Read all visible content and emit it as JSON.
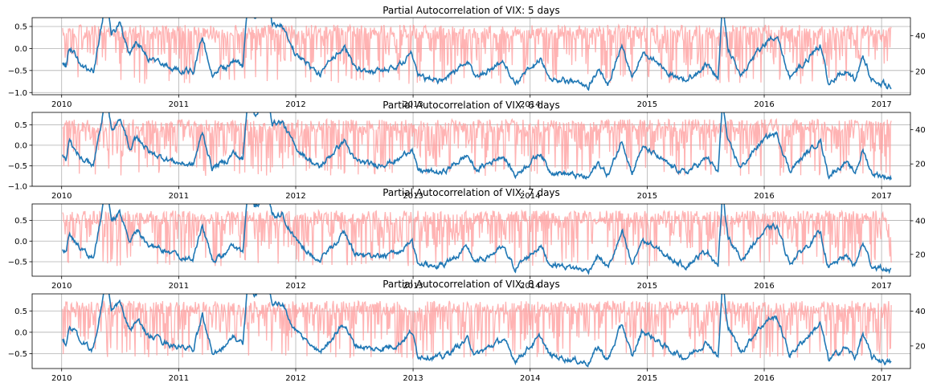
{
  "chart_data": [
    {
      "type": "line",
      "title": "Partial Autocorrelation of VIX: 5 days",
      "x_ticks": [
        "2010",
        "2011",
        "2012",
        "2013",
        "2014",
        "2015",
        "2016",
        "2017"
      ],
      "xlim": [
        "2009-10-01",
        "2017-04-01"
      ],
      "left_axis": {
        "ylim": [
          -1.05,
          0.7
        ],
        "ticks": [
          0.5,
          0.0,
          -0.5,
          -1.0
        ],
        "tick_labels": [
          "0.5",
          "0.0",
          "−0.5",
          "−1.0"
        ]
      },
      "right_axis": {
        "ylim": [
          7,
          50
        ],
        "ticks": [
          40,
          20
        ],
        "tick_labels": [
          "40",
          "20"
        ]
      },
      "grid": true,
      "series": [
        {
          "axis": "right",
          "color": "#ff9999",
          "alpha": 0.75,
          "amp": 0.54,
          "kind": "pacf",
          "seed": 5
        },
        {
          "axis": "left",
          "color": "#1f77b4",
          "base": -0.85,
          "scale": 0.062,
          "kind": "vix"
        }
      ]
    },
    {
      "type": "line",
      "title": "Partial Autocorrelation of VIX: 6 days",
      "x_ticks": [
        "2010",
        "2011",
        "2012",
        "2013",
        "2014",
        "2015",
        "2016",
        "2017"
      ],
      "xlim": [
        "2009-10-01",
        "2017-04-01"
      ],
      "left_axis": {
        "ylim": [
          -1.0,
          0.8
        ],
        "ticks": [
          0.5,
          0.0,
          -0.5,
          -1.0
        ],
        "tick_labels": [
          "0.5",
          "0.0",
          "−0.5",
          "−1.0"
        ]
      },
      "right_axis": {
        "ylim": [
          7,
          50
        ],
        "ticks": [
          40,
          20
        ],
        "tick_labels": [
          "40",
          "20"
        ]
      },
      "grid": true,
      "series": [
        {
          "axis": "right",
          "color": "#ff9999",
          "alpha": 0.75,
          "amp": 0.54,
          "kind": "pacf",
          "seed": 6
        },
        {
          "axis": "left",
          "color": "#1f77b4",
          "base": -0.8,
          "scale": 0.062,
          "kind": "vix"
        }
      ]
    },
    {
      "type": "line",
      "title": "Partial Autocorrelation of VIX: 7 days",
      "x_ticks": [
        "2010",
        "2011",
        "2012",
        "2013",
        "2014",
        "2015",
        "2016",
        "2017"
      ],
      "xlim": [
        "2009-10-01",
        "2017-04-01"
      ],
      "left_axis": {
        "ylim": [
          -0.85,
          0.9
        ],
        "ticks": [
          0.5,
          0.0,
          -0.5
        ],
        "tick_labels": [
          "0.5",
          "0.0",
          "−0.5"
        ]
      },
      "right_axis": {
        "ylim": [
          7,
          50
        ],
        "ticks": [
          40,
          20
        ],
        "tick_labels": [
          "40",
          "20"
        ]
      },
      "grid": true,
      "series": [
        {
          "axis": "right",
          "color": "#ff9999",
          "alpha": 0.75,
          "amp": 0.54,
          "kind": "pacf",
          "seed": 7
        },
        {
          "axis": "left",
          "color": "#1f77b4",
          "base": -0.72,
          "scale": 0.062,
          "kind": "vix"
        }
      ]
    },
    {
      "type": "line",
      "title": "Partial Autocorrelation of VIX: 8 days",
      "x_ticks": [
        "2010",
        "2011",
        "2012",
        "2013",
        "2014",
        "2015",
        "2016",
        "2017"
      ],
      "xlim": [
        "2009-10-01",
        "2017-04-01"
      ],
      "left_axis": {
        "ylim": [
          -0.85,
          0.9
        ],
        "ticks": [
          0.5,
          0.0,
          -0.5
        ],
        "tick_labels": [
          "0.5",
          "0.0",
          "−0.5"
        ]
      },
      "right_axis": {
        "ylim": [
          7,
          50
        ],
        "ticks": [
          40,
          20
        ],
        "tick_labels": [
          "40",
          "20"
        ]
      },
      "grid": true,
      "series": [
        {
          "axis": "right",
          "color": "#ff9999",
          "alpha": 0.75,
          "amp": 0.54,
          "kind": "pacf",
          "seed": 8
        },
        {
          "axis": "left",
          "color": "#1f77b4",
          "base": -0.72,
          "scale": 0.062,
          "kind": "vix"
        }
      ]
    }
  ],
  "vix_anchors": [
    [
      "2010-01-04",
      20
    ],
    [
      "2010-01-15",
      18
    ],
    [
      "2010-01-25",
      25
    ],
    [
      "2010-02-10",
      23
    ],
    [
      "2010-03-01",
      19
    ],
    [
      "2010-04-10",
      16
    ],
    [
      "2010-05-06",
      33
    ],
    [
      "2010-05-20",
      45
    ],
    [
      "2010-06-05",
      30
    ],
    [
      "2010-07-01",
      34
    ],
    [
      "2010-08-01",
      23
    ],
    [
      "2010-08-25",
      27
    ],
    [
      "2010-10-01",
      21
    ],
    [
      "2010-11-15",
      19
    ],
    [
      "2010-12-31",
      17
    ],
    [
      "2011-02-15",
      16
    ],
    [
      "2011-03-16",
      29
    ],
    [
      "2011-04-15",
      15
    ],
    [
      "2011-06-01",
      18
    ],
    [
      "2011-06-20",
      21
    ],
    [
      "2011-07-20",
      18
    ],
    [
      "2011-08-08",
      48
    ],
    [
      "2011-08-25",
      36
    ],
    [
      "2011-09-15",
      38
    ],
    [
      "2011-10-03",
      45
    ],
    [
      "2011-10-20",
      33
    ],
    [
      "2011-11-20",
      33
    ],
    [
      "2011-12-31",
      23
    ],
    [
      "2012-02-15",
      18
    ],
    [
      "2012-03-15",
      15
    ],
    [
      "2012-06-01",
      26
    ],
    [
      "2012-07-01",
      18
    ],
    [
      "2012-09-01",
      16
    ],
    [
      "2012-11-15",
      18
    ],
    [
      "2012-12-28",
      23
    ],
    [
      "2013-01-15",
      14
    ],
    [
      "2013-04-01",
      13
    ],
    [
      "2013-06-20",
      20
    ],
    [
      "2013-07-15",
      14
    ],
    [
      "2013-10-08",
      20
    ],
    [
      "2013-11-15",
      12
    ],
    [
      "2014-02-03",
      21
    ],
    [
      "2014-03-01",
      14
    ],
    [
      "2014-07-01",
      11
    ],
    [
      "2014-08-01",
      17
    ],
    [
      "2014-09-01",
      12
    ],
    [
      "2014-10-15",
      26
    ],
    [
      "2014-11-15",
      13
    ],
    [
      "2014-12-16",
      23
    ],
    [
      "2015-01-15",
      21
    ],
    [
      "2015-03-10",
      16
    ],
    [
      "2015-05-01",
      13
    ],
    [
      "2015-07-08",
      19
    ],
    [
      "2015-08-10",
      13
    ],
    [
      "2015-08-24",
      41
    ],
    [
      "2015-09-10",
      25
    ],
    [
      "2015-10-20",
      15
    ],
    [
      "2015-12-14",
      24
    ],
    [
      "2016-01-20",
      28
    ],
    [
      "2016-02-11",
      28
    ],
    [
      "2016-03-20",
      14
    ],
    [
      "2016-06-24",
      26
    ],
    [
      "2016-07-20",
      12
    ],
    [
      "2016-09-09",
      17
    ],
    [
      "2016-10-10",
      13
    ],
    [
      "2016-11-04",
      22
    ],
    [
      "2016-12-01",
      13
    ],
    [
      "2017-01-31",
      11
    ]
  ]
}
